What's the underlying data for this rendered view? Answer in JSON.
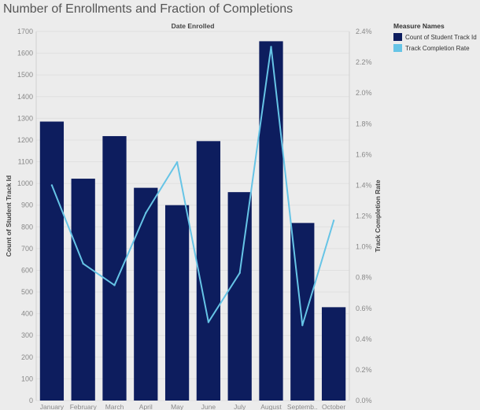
{
  "title": "Number of Enrollments and Fraction of Completions",
  "colors": {
    "background": "#ececec",
    "bar": "#0d1d5e",
    "line": "#66c4e6",
    "grid": "#e0e0e0",
    "axis_text": "#888888"
  },
  "legend": {
    "title": "Measure Names",
    "items": [
      {
        "label": "Count of Student Track Id",
        "color": "#0d1d5e",
        "kind": "bar"
      },
      {
        "label": "Track Completion Rate",
        "color": "#66c4e6",
        "kind": "line"
      }
    ]
  },
  "chart_data": {
    "type": "bar",
    "categories": [
      "January",
      "February",
      "March",
      "April",
      "May",
      "June",
      "July",
      "August",
      "Septemb..",
      "October"
    ],
    "top_axis_label": "Date Enrolled",
    "ylabel": "Count of Student Track Id",
    "ylabel_right": "Track Completion Rate",
    "ylim": [
      0,
      1700
    ],
    "yticks": [
      0,
      100,
      200,
      300,
      400,
      500,
      600,
      700,
      800,
      900,
      1000,
      1100,
      1200,
      1300,
      1400,
      1500,
      1600,
      1700
    ],
    "y2lim": [
      0,
      2.4
    ],
    "y2ticks": [
      "0.0%",
      "0.2%",
      "0.4%",
      "0.6%",
      "0.8%",
      "1.0%",
      "1.2%",
      "1.4%",
      "1.6%",
      "1.8%",
      "2.0%",
      "2.2%",
      "2.4%"
    ],
    "grid": true,
    "series": [
      {
        "name": "Count of Student Track Id",
        "type": "bar",
        "axis": "left",
        "values": [
          1285,
          1022,
          1218,
          980,
          900,
          1195,
          960,
          1655,
          818,
          430
        ]
      },
      {
        "name": "Track Completion Rate",
        "type": "line",
        "axis": "right",
        "values": [
          1.4,
          0.89,
          0.75,
          1.22,
          1.55,
          0.51,
          0.83,
          2.3,
          0.49,
          1.17
        ]
      }
    ]
  }
}
